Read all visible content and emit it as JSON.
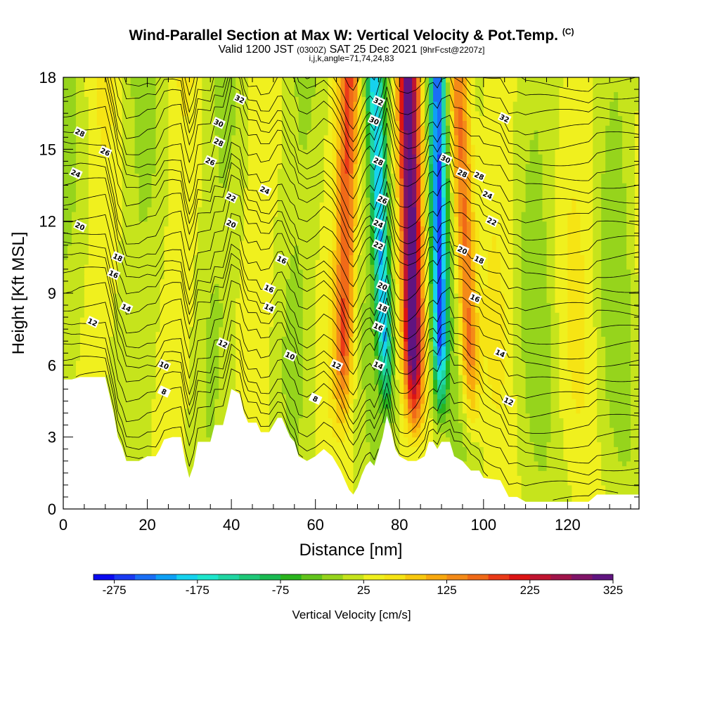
{
  "header": {
    "title": "Wind-Parallel Section at Max W: Vertical Velocity & Pot.Temp.",
    "copyright": "(C)",
    "valid_prefix": "Valid 1200 JST",
    "valid_utc": "(0300Z)",
    "valid_date": "SAT 25 Dec 2021",
    "forecast_info": "[9hrFcst@2207z]",
    "params": "i,j,k,angle=71,74,24,83"
  },
  "chart_data": {
    "type": "heatmap",
    "xlabel": "Distance [nm]",
    "ylabel": "Height [Kft MSL]",
    "xlim": [
      0,
      137
    ],
    "ylim": [
      0,
      18
    ],
    "x_ticks": [
      "0",
      "20",
      "40",
      "60",
      "80",
      "100",
      "120"
    ],
    "y_ticks": [
      "0",
      "3",
      "6",
      "9",
      "12",
      "15",
      "18"
    ],
    "colorbar": {
      "title": "Vertical Velocity [cm/s]",
      "tick_labels": [
        "-275",
        "-175",
        "-75",
        "25",
        "125",
        "225",
        "325"
      ],
      "colors": [
        "#0a0af0",
        "#1a3af2",
        "#1a6ef5",
        "#0ea0f5",
        "#16d2ee",
        "#1ee6cc",
        "#20d6a2",
        "#1ec878",
        "#1aba52",
        "#2ab41e",
        "#62c41c",
        "#96d41c",
        "#c6e41c",
        "#f0f01e",
        "#f6e414",
        "#f8c80e",
        "#f8a80e",
        "#f48a18",
        "#f06a18",
        "#ea3a18",
        "#dc1414",
        "#c01430",
        "#a0144a",
        "#801468",
        "#601480"
      ]
    },
    "updrafts": [
      {
        "x_bottom": 84,
        "x_top": 82,
        "peak_cm_s": 300
      },
      {
        "x_bottom": 98,
        "x_top": 94,
        "peak_cm_s": 150
      },
      {
        "x_bottom": 66,
        "x_top": 68,
        "peak_cm_s": 140
      }
    ],
    "downdrafts": [
      {
        "x_bottom": 78,
        "x_top": 74,
        "peak_cm_s": -200
      },
      {
        "x_bottom": 90,
        "x_top": 89,
        "peak_cm_s": -275
      }
    ],
    "terrain_kft": [
      [
        0,
        5.4
      ],
      [
        2,
        5.4
      ],
      [
        4,
        5.5
      ],
      [
        8,
        5.5
      ],
      [
        10,
        5.5
      ],
      [
        12,
        4.0
      ],
      [
        13,
        3.0
      ],
      [
        14,
        2.6
      ],
      [
        15,
        2.0
      ],
      [
        18,
        2.0
      ],
      [
        20,
        2.2
      ],
      [
        22,
        2.2
      ],
      [
        23,
        2.5
      ],
      [
        24,
        2.9
      ],
      [
        26,
        3.0
      ],
      [
        28,
        3.0
      ],
      [
        29,
        2.0
      ],
      [
        30,
        1.3
      ],
      [
        31,
        1.8
      ],
      [
        32,
        2.8
      ],
      [
        35,
        2.8
      ],
      [
        36,
        3.5
      ],
      [
        38,
        3.5
      ],
      [
        39,
        4.2
      ],
      [
        40,
        5.0
      ],
      [
        42,
        4.8
      ],
      [
        43,
        4.0
      ],
      [
        44,
        3.6
      ],
      [
        46,
        3.6
      ],
      [
        47,
        3.2
      ],
      [
        49,
        3.2
      ],
      [
        50,
        3.5
      ],
      [
        51,
        3.8
      ],
      [
        52,
        3.8
      ],
      [
        53,
        3.4
      ],
      [
        54,
        3.0
      ],
      [
        55,
        2.8
      ],
      [
        56,
        2.2
      ],
      [
        58,
        2.0
      ],
      [
        60,
        2.2
      ],
      [
        62,
        2.5
      ],
      [
        64,
        2.2
      ],
      [
        66,
        1.6
      ],
      [
        67,
        1.2
      ],
      [
        68,
        0.8
      ],
      [
        69,
        0.6
      ],
      [
        70,
        0.9
      ],
      [
        71,
        1.4
      ],
      [
        72,
        1.8
      ],
      [
        73,
        2.0
      ],
      [
        74,
        1.8
      ],
      [
        75,
        2.4
      ],
      [
        76,
        3.0
      ],
      [
        77,
        3.9
      ],
      [
        78,
        3.3
      ],
      [
        79,
        2.5
      ],
      [
        80,
        2.2
      ],
      [
        82,
        2.0
      ],
      [
        84,
        2.0
      ],
      [
        86,
        2.2
      ],
      [
        87,
        2.8
      ],
      [
        88,
        2.8
      ],
      [
        89,
        2.5
      ],
      [
        90,
        2.8
      ],
      [
        92,
        2.8
      ],
      [
        93,
        2.2
      ],
      [
        95,
        2.0
      ],
      [
        96,
        1.8
      ],
      [
        97,
        1.6
      ],
      [
        99,
        1.6
      ],
      [
        100,
        1.3
      ],
      [
        104,
        1.2
      ],
      [
        106,
        0.5
      ],
      [
        108,
        0.5
      ],
      [
        110,
        0.3
      ],
      [
        125,
        0.3
      ],
      [
        127,
        0.6
      ],
      [
        128,
        0.6
      ],
      [
        137,
        0.6
      ]
    ],
    "theta_contour_labels": [
      {
        "text": "32",
        "x": 42,
        "y": 17.1
      },
      {
        "text": "30",
        "x": 37,
        "y": 16.1
      },
      {
        "text": "28",
        "x": 37,
        "y": 15.3
      },
      {
        "text": "28",
        "x": 4,
        "y": 15.7
      },
      {
        "text": "26",
        "x": 10,
        "y": 14.9
      },
      {
        "text": "26",
        "x": 35,
        "y": 14.5
      },
      {
        "text": "24",
        "x": 3,
        "y": 14.0
      },
      {
        "text": "24",
        "x": 48,
        "y": 13.3
      },
      {
        "text": "22",
        "x": 40,
        "y": 13.0
      },
      {
        "text": "20",
        "x": 4,
        "y": 11.8
      },
      {
        "text": "20",
        "x": 40,
        "y": 11.9
      },
      {
        "text": "18",
        "x": 13,
        "y": 10.5
      },
      {
        "text": "16",
        "x": 12,
        "y": 9.8
      },
      {
        "text": "16",
        "x": 52,
        "y": 10.4
      },
      {
        "text": "16",
        "x": 49,
        "y": 9.2
      },
      {
        "text": "14",
        "x": 15,
        "y": 8.4
      },
      {
        "text": "14",
        "x": 49,
        "y": 8.4
      },
      {
        "text": "12",
        "x": 7,
        "y": 7.8
      },
      {
        "text": "12",
        "x": 38,
        "y": 6.9
      },
      {
        "text": "10",
        "x": 24,
        "y": 6.0
      },
      {
        "text": "10",
        "x": 54,
        "y": 6.4
      },
      {
        "text": "8",
        "x": 24,
        "y": 4.9
      },
      {
        "text": "8",
        "x": 60,
        "y": 4.6
      },
      {
        "text": "12",
        "x": 65,
        "y": 6.0
      },
      {
        "text": "14",
        "x": 75,
        "y": 6.0
      },
      {
        "text": "16",
        "x": 75,
        "y": 7.6
      },
      {
        "text": "18",
        "x": 76,
        "y": 8.4
      },
      {
        "text": "20",
        "x": 76,
        "y": 9.3
      },
      {
        "text": "22",
        "x": 75,
        "y": 11.0
      },
      {
        "text": "24",
        "x": 75,
        "y": 11.9
      },
      {
        "text": "26",
        "x": 76,
        "y": 12.9
      },
      {
        "text": "28",
        "x": 75,
        "y": 14.5
      },
      {
        "text": "30",
        "x": 74,
        "y": 16.2
      },
      {
        "text": "32",
        "x": 75,
        "y": 17.0
      },
      {
        "text": "30",
        "x": 91,
        "y": 14.6
      },
      {
        "text": "28",
        "x": 95,
        "y": 14.0
      },
      {
        "text": "28",
        "x": 99,
        "y": 13.9
      },
      {
        "text": "24",
        "x": 101,
        "y": 13.1
      },
      {
        "text": "22",
        "x": 102,
        "y": 12.0
      },
      {
        "text": "20",
        "x": 95,
        "y": 10.8
      },
      {
        "text": "18",
        "x": 99,
        "y": 10.4
      },
      {
        "text": "16",
        "x": 98,
        "y": 8.8
      },
      {
        "text": "14",
        "x": 104,
        "y": 6.5
      },
      {
        "text": "12",
        "x": 106,
        "y": 4.5
      },
      {
        "text": "32",
        "x": 105,
        "y": 16.3
      }
    ]
  }
}
